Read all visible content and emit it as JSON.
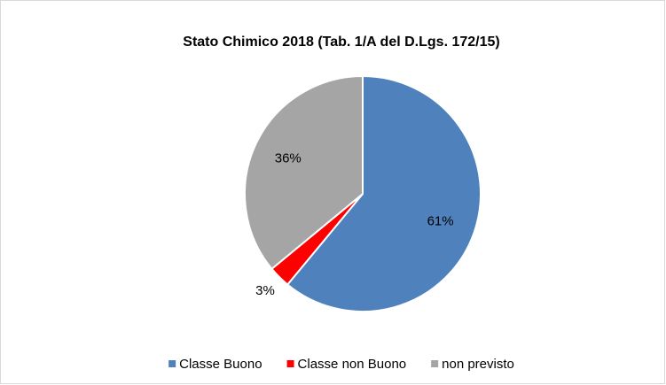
{
  "chart_data": {
    "type": "pie",
    "title": "Stato Chimico 2018 (Tab. 1/A del D.Lgs. 172/15)",
    "categories": [
      "Classe Buono",
      "Classe non Buono",
      "non previsto"
    ],
    "values": [
      61,
      3,
      36
    ],
    "value_labels": [
      "61%",
      "3%",
      "36%"
    ],
    "colors": [
      "#4f81bd",
      "#ff0000",
      "#a5a5a5"
    ],
    "legend": "bottom"
  }
}
